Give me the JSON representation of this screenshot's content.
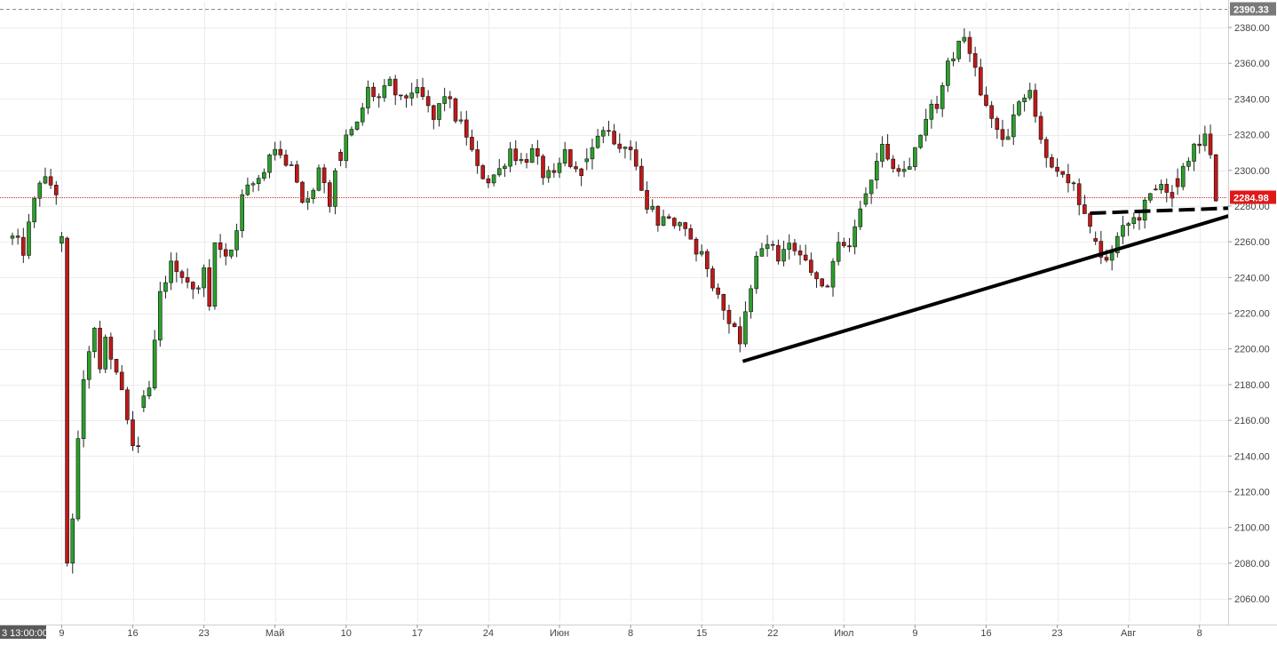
{
  "chart_data": {
    "type": "candlestick",
    "ylim": [
      2050,
      2392
    ],
    "grid": true,
    "y_ticks": [
      2060,
      2080,
      2100,
      2120,
      2140,
      2160,
      2180,
      2200,
      2220,
      2240,
      2260,
      2280,
      2300,
      2320,
      2340,
      2360,
      2380
    ],
    "y_tick_labels": [
      "2060.00",
      "2080.00",
      "2100.00",
      "2120.00",
      "2140.00",
      "2160.00",
      "2180.00",
      "2200.00",
      "2220.00",
      "2240.00",
      "2260.00",
      "2280.00",
      "2300.00",
      "2320.00",
      "2340.00",
      "2360.00",
      "2380.00"
    ],
    "x_ticks": [
      {
        "label": "9",
        "bar": 9
      },
      {
        "label": "16",
        "bar": 22
      },
      {
        "label": "23",
        "bar": 35
      },
      {
        "label": "Май",
        "bar": 48
      },
      {
        "label": "10",
        "bar": 61
      },
      {
        "label": "17",
        "bar": 74
      },
      {
        "label": "24",
        "bar": 87
      },
      {
        "label": "Июн",
        "bar": 100
      },
      {
        "label": "8",
        "bar": 113
      },
      {
        "label": "15",
        "bar": 126
      },
      {
        "label": "22",
        "bar": 139
      },
      {
        "label": "Июл",
        "bar": 152
      },
      {
        "label": "9",
        "bar": 165
      },
      {
        "label": "16",
        "bar": 178
      },
      {
        "label": "23",
        "bar": 191
      },
      {
        "label": "Авг",
        "bar": 204
      },
      {
        "label": "8",
        "bar": 217
      }
    ],
    "bar_count": 220,
    "x_cursor_label": "3 13:00:00",
    "last_price": 2284.98,
    "last_price_label": "2284.98",
    "top_price_label": "2390.33",
    "series": [
      {
        "anchors": [
          [
            0,
            2262
          ],
          [
            2,
            2255
          ],
          [
            4,
            2282
          ],
          [
            5,
            2295
          ],
          [
            7,
            2292
          ],
          [
            8,
            2288
          ],
          [
            9,
            2260
          ],
          [
            9.6,
            2200
          ],
          [
            10.2,
            2075
          ],
          [
            11.5,
            2125
          ],
          [
            12.5,
            2175
          ],
          [
            14,
            2200
          ],
          [
            15,
            2210
          ],
          [
            16,
            2192
          ],
          [
            17,
            2205
          ],
          [
            18,
            2195
          ],
          [
            20,
            2180
          ],
          [
            21,
            2162
          ],
          [
            22,
            2148
          ],
          [
            23,
            2145
          ],
          [
            24,
            2172
          ],
          [
            25,
            2178
          ],
          [
            27,
            2232
          ],
          [
            29,
            2250
          ],
          [
            31,
            2240
          ],
          [
            33,
            2232
          ],
          [
            35,
            2243
          ],
          [
            36,
            2226
          ],
          [
            37,
            2260
          ],
          [
            39,
            2248
          ],
          [
            41,
            2266
          ],
          [
            42,
            2285
          ],
          [
            44,
            2292
          ],
          [
            46,
            2300
          ],
          [
            47,
            2310
          ],
          [
            49,
            2306
          ],
          [
            51,
            2300
          ],
          [
            53,
            2285
          ],
          [
            54,
            2282
          ],
          [
            56,
            2298
          ],
          [
            58,
            2282
          ],
          [
            59,
            2296
          ],
          [
            61,
            2318
          ],
          [
            63,
            2325
          ],
          [
            65,
            2345
          ],
          [
            67,
            2340
          ],
          [
            69,
            2348
          ],
          [
            71,
            2338
          ],
          [
            73,
            2345
          ],
          [
            75,
            2340
          ],
          [
            77,
            2328
          ],
          [
            79,
            2343
          ],
          [
            81,
            2330
          ],
          [
            83,
            2320
          ],
          [
            85,
            2300
          ],
          [
            87,
            2295
          ],
          [
            89,
            2300
          ],
          [
            91,
            2312
          ],
          [
            93,
            2305
          ],
          [
            95,
            2310
          ],
          [
            97,
            2298
          ],
          [
            99,
            2295
          ],
          [
            101,
            2310
          ],
          [
            103,
            2298
          ],
          [
            105,
            2304
          ],
          [
            107,
            2318
          ],
          [
            109,
            2322
          ],
          [
            111,
            2315
          ],
          [
            113,
            2312
          ],
          [
            114,
            2300
          ],
          [
            116,
            2282
          ],
          [
            118,
            2272
          ],
          [
            120,
            2275
          ],
          [
            122,
            2268
          ],
          [
            124,
            2260
          ],
          [
            126,
            2252
          ],
          [
            128,
            2238
          ],
          [
            130,
            2225
          ],
          [
            132,
            2210
          ],
          [
            133,
            2205
          ],
          [
            134,
            2222
          ],
          [
            136,
            2252
          ],
          [
            138,
            2258
          ],
          [
            140,
            2252
          ],
          [
            142,
            2260
          ],
          [
            144,
            2250
          ],
          [
            146,
            2242
          ],
          [
            148,
            2237
          ],
          [
            149,
            2232
          ],
          [
            151,
            2262
          ],
          [
            153,
            2258
          ],
          [
            155,
            2275
          ],
          [
            157,
            2295
          ],
          [
            159,
            2315
          ],
          [
            161,
            2305
          ],
          [
            163,
            2300
          ],
          [
            165,
            2312
          ],
          [
            167,
            2330
          ],
          [
            169,
            2338
          ],
          [
            171,
            2358
          ],
          [
            173,
            2372
          ],
          [
            174,
            2376
          ],
          [
            175,
            2368
          ],
          [
            176,
            2355
          ],
          [
            178,
            2335
          ],
          [
            180,
            2322
          ],
          [
            182,
            2316
          ],
          [
            184,
            2340
          ],
          [
            186,
            2346
          ],
          [
            188,
            2318
          ],
          [
            190,
            2300
          ],
          [
            192,
            2296
          ],
          [
            194,
            2290
          ],
          [
            196,
            2272
          ],
          [
            198,
            2258
          ],
          [
            200,
            2248
          ],
          [
            202,
            2262
          ],
          [
            204,
            2270
          ],
          [
            206,
            2275
          ],
          [
            208,
            2285
          ],
          [
            210,
            2292
          ],
          [
            212,
            2288
          ],
          [
            214,
            2300
          ],
          [
            216,
            2312
          ],
          [
            218,
            2320
          ],
          [
            219,
            2305
          ],
          [
            220,
            2285
          ]
        ],
        "gaps_after": [
          8,
          23,
          59,
          104,
          155,
          197,
          208,
          212
        ]
      }
    ],
    "annotations": [
      {
        "type": "solid-trendline",
        "from": [
          133.5,
          2193
        ],
        "to": [
          224,
          2276
        ]
      },
      {
        "type": "dashed-line",
        "from": [
          197,
          2276
        ],
        "to": [
          224,
          2279
        ]
      }
    ]
  }
}
